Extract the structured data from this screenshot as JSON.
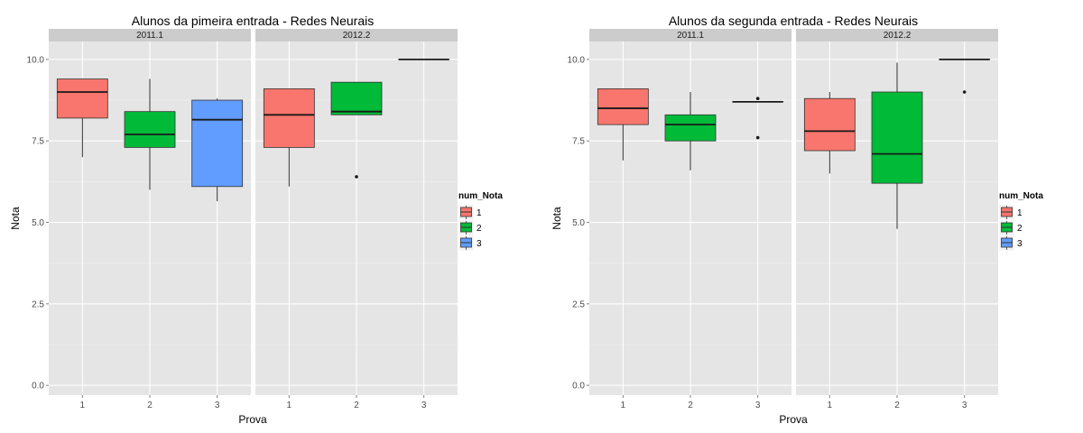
{
  "chart_data": [
    {
      "type": "boxplot",
      "title": "Alunos da pimeira entrada -  Redes Neurais",
      "xlabel": "Prova",
      "ylabel": "Nota",
      "ylim": [
        -0.3,
        10.55
      ],
      "yticks": [
        "0.0",
        "2.5",
        "5.0",
        "7.5",
        "10.0"
      ],
      "ytick_values": [
        0,
        2.5,
        5,
        7.5,
        10
      ],
      "categories": [
        "1",
        "2",
        "3"
      ],
      "legend": {
        "title": "num_Nota",
        "entries": [
          "1",
          "2",
          "3"
        ]
      },
      "facets": [
        {
          "label": "2011.1",
          "boxes": [
            {
              "x": "1",
              "series": "1",
              "min": 7.0,
              "q1": 8.2,
              "median": 9.0,
              "q3": 9.4,
              "max": 9.4,
              "outliers": []
            },
            {
              "x": "2",
              "series": "2",
              "min": 6.0,
              "q1": 7.3,
              "median": 7.7,
              "q3": 8.4,
              "max": 9.4,
              "outliers": []
            },
            {
              "x": "3",
              "series": "3",
              "min": 5.65,
              "q1": 6.1,
              "median": 8.15,
              "q3": 8.75,
              "max": 8.8,
              "outliers": []
            }
          ]
        },
        {
          "label": "2012.2",
          "boxes": [
            {
              "x": "1",
              "series": "1",
              "min": 6.1,
              "q1": 7.3,
              "median": 8.3,
              "q3": 9.1,
              "max": 9.1,
              "outliers": []
            },
            {
              "x": "2",
              "series": "2",
              "min": 8.3,
              "q1": 8.3,
              "median": 8.4,
              "q3": 9.3,
              "max": 9.3,
              "outliers": [
                6.4
              ]
            },
            {
              "x": "3",
              "series": "3",
              "min": 10.0,
              "q1": 10.0,
              "median": 10.0,
              "q3": 10.0,
              "max": 10.0,
              "outliers": []
            }
          ]
        }
      ]
    },
    {
      "type": "boxplot",
      "title": "Alunos da segunda entrada -  Redes Neurais",
      "xlabel": "Prova",
      "ylabel": "Nota",
      "ylim": [
        -0.3,
        10.55
      ],
      "yticks": [
        "0.0",
        "2.5",
        "5.0",
        "7.5",
        "10.0"
      ],
      "ytick_values": [
        0,
        2.5,
        5,
        7.5,
        10
      ],
      "categories": [
        "1",
        "2",
        "3"
      ],
      "legend": {
        "title": "num_Nota",
        "entries": [
          "1",
          "2",
          "3"
        ]
      },
      "facets": [
        {
          "label": "2011.1",
          "boxes": [
            {
              "x": "1",
              "series": "1",
              "min": 6.9,
              "q1": 8.0,
              "median": 8.5,
              "q3": 9.1,
              "max": 9.1,
              "outliers": []
            },
            {
              "x": "2",
              "series": "2",
              "min": 6.6,
              "q1": 7.5,
              "median": 8.0,
              "q3": 8.3,
              "max": 9.0,
              "outliers": []
            },
            {
              "x": "3",
              "series": "3",
              "min": 8.7,
              "q1": 8.7,
              "median": 8.7,
              "q3": 8.7,
              "max": 8.7,
              "outliers": [
                8.8,
                7.6
              ]
            }
          ]
        },
        {
          "label": "2012.2",
          "boxes": [
            {
              "x": "1",
              "series": "1",
              "min": 6.5,
              "q1": 7.2,
              "median": 7.8,
              "q3": 8.8,
              "max": 9.0,
              "outliers": []
            },
            {
              "x": "2",
              "series": "2",
              "min": 4.8,
              "q1": 6.2,
              "median": 7.1,
              "q3": 9.0,
              "max": 9.9,
              "outliers": []
            },
            {
              "x": "3",
              "series": "3",
              "min": 10.0,
              "q1": 10.0,
              "median": 10.0,
              "q3": 10.0,
              "max": 10.0,
              "outliers": [
                9.0
              ]
            }
          ]
        }
      ]
    }
  ],
  "colors": {
    "series": {
      "1": "#F8766D",
      "2": "#00BA38",
      "3": "#619CFF"
    },
    "panel_bg": "#E5E5E5",
    "strip_bg": "#CCCCCC",
    "grid_major": "#FFFFFF",
    "grid_minor": "#F2F2F2"
  }
}
